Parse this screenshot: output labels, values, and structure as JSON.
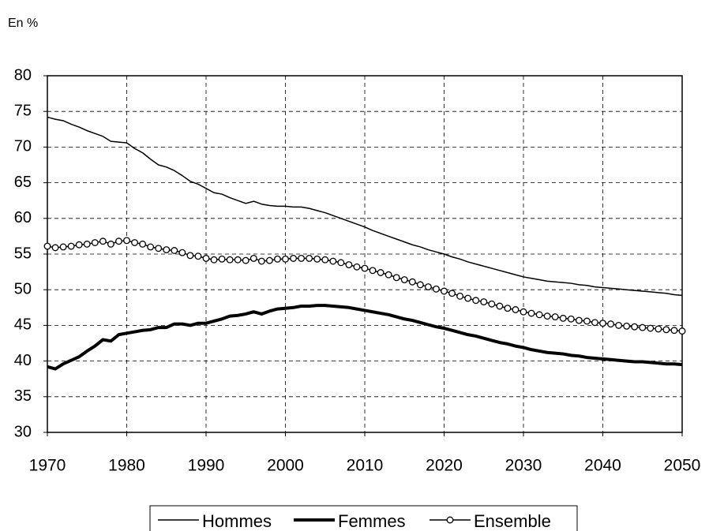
{
  "chart_data": {
    "type": "line",
    "unit_label": "En %",
    "x": [
      1970,
      1971,
      1972,
      1973,
      1974,
      1975,
      1976,
      1977,
      1978,
      1979,
      1980,
      1981,
      1982,
      1983,
      1984,
      1985,
      1986,
      1987,
      1988,
      1989,
      1990,
      1991,
      1992,
      1993,
      1994,
      1995,
      1996,
      1997,
      1998,
      1999,
      2000,
      2001,
      2002,
      2003,
      2004,
      2005,
      2006,
      2007,
      2008,
      2009,
      2010,
      2011,
      2012,
      2013,
      2014,
      2015,
      2016,
      2017,
      2018,
      2019,
      2020,
      2021,
      2022,
      2023,
      2024,
      2025,
      2026,
      2027,
      2028,
      2029,
      2030,
      2031,
      2032,
      2033,
      2034,
      2035,
      2036,
      2037,
      2038,
      2039,
      2040,
      2041,
      2042,
      2043,
      2044,
      2045,
      2046,
      2047,
      2048,
      2049,
      2050
    ],
    "series": [
      {
        "name": "Hommes",
        "color": "#000000",
        "line_width": 1.5,
        "marker": false,
        "values": [
          74.2,
          73.9,
          73.7,
          73.2,
          72.8,
          72.3,
          71.9,
          71.5,
          70.8,
          70.7,
          70.6,
          69.8,
          69.2,
          68.3,
          67.5,
          67.2,
          66.7,
          66.0,
          65.2,
          64.8,
          64.2,
          63.6,
          63.4,
          62.9,
          62.5,
          62.1,
          62.4,
          62.0,
          61.8,
          61.7,
          61.7,
          61.6,
          61.6,
          61.4,
          61.1,
          60.8,
          60.4,
          60.0,
          59.6,
          59.2,
          58.8,
          58.3,
          57.9,
          57.5,
          57.1,
          56.7,
          56.3,
          56.0,
          55.6,
          55.3,
          55.0,
          54.6,
          54.3,
          53.9,
          53.6,
          53.3,
          53.0,
          52.7,
          52.4,
          52.1,
          51.8,
          51.6,
          51.4,
          51.2,
          51.1,
          51.0,
          50.9,
          50.7,
          50.6,
          50.4,
          50.3,
          50.2,
          50.1,
          50.0,
          49.9,
          49.8,
          49.7,
          49.6,
          49.5,
          49.3,
          49.2
        ]
      },
      {
        "name": "Femmes",
        "color": "#000000",
        "line_width": 4,
        "marker": false,
        "values": [
          39.2,
          38.9,
          39.6,
          40.1,
          40.6,
          41.4,
          42.1,
          43.0,
          42.8,
          43.7,
          43.9,
          44.1,
          44.3,
          44.4,
          44.7,
          44.7,
          45.2,
          45.2,
          45.0,
          45.3,
          45.3,
          45.6,
          45.9,
          46.3,
          46.4,
          46.6,
          46.9,
          46.6,
          47.0,
          47.3,
          47.4,
          47.5,
          47.7,
          47.7,
          47.8,
          47.8,
          47.7,
          47.6,
          47.5,
          47.3,
          47.1,
          46.9,
          46.7,
          46.5,
          46.2,
          45.9,
          45.7,
          45.4,
          45.1,
          44.8,
          44.6,
          44.3,
          44.0,
          43.7,
          43.5,
          43.2,
          42.9,
          42.6,
          42.4,
          42.1,
          41.9,
          41.6,
          41.4,
          41.2,
          41.1,
          41.0,
          40.8,
          40.7,
          40.5,
          40.4,
          40.3,
          40.2,
          40.1,
          40.0,
          39.9,
          39.9,
          39.8,
          39.7,
          39.6,
          39.6,
          39.5
        ]
      },
      {
        "name": "Ensemble",
        "color": "#000000",
        "line_width": 1.5,
        "marker": true,
        "values": [
          56.1,
          55.9,
          56.0,
          56.1,
          56.3,
          56.4,
          56.6,
          56.8,
          56.4,
          56.8,
          56.9,
          56.6,
          56.4,
          56.0,
          55.8,
          55.6,
          55.5,
          55.2,
          54.8,
          54.7,
          54.4,
          54.2,
          54.3,
          54.2,
          54.2,
          54.1,
          54.4,
          54.0,
          54.1,
          54.3,
          54.3,
          54.4,
          54.4,
          54.4,
          54.3,
          54.2,
          54.0,
          53.8,
          53.5,
          53.2,
          53.0,
          52.7,
          52.4,
          52.1,
          51.7,
          51.4,
          51.1,
          50.7,
          50.4,
          50.1,
          49.8,
          49.5,
          49.1,
          48.8,
          48.5,
          48.3,
          48.0,
          47.7,
          47.4,
          47.2,
          46.9,
          46.7,
          46.5,
          46.3,
          46.2,
          46.0,
          45.9,
          45.7,
          45.6,
          45.4,
          45.3,
          45.2,
          45.0,
          44.9,
          44.8,
          44.7,
          44.6,
          44.5,
          44.4,
          44.3,
          44.2
        ]
      }
    ],
    "xlim": [
      1970,
      2050
    ],
    "xticks": [
      1970,
      1980,
      1990,
      2000,
      2010,
      2020,
      2030,
      2040,
      2050
    ],
    "ylim": [
      30,
      80
    ],
    "yticks": [
      30,
      35,
      40,
      45,
      50,
      55,
      60,
      65,
      70,
      75,
      80
    ],
    "grid": true,
    "legend": "bottom"
  }
}
